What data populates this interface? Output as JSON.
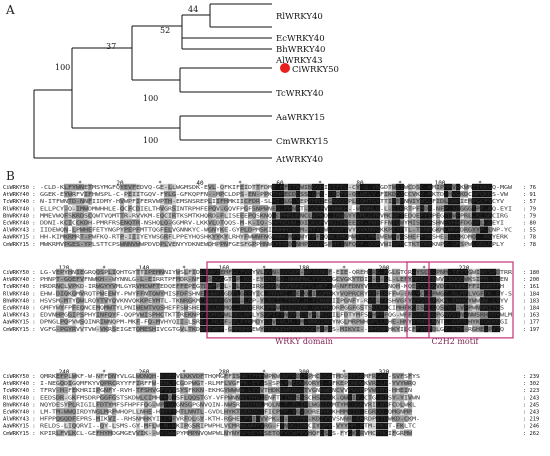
{
  "panels": {
    "a_label": "A",
    "b_label": "B"
  },
  "tree": {
    "taxa": [
      "RlWRKY40",
      "EcWRKY40",
      "BhWRKY40",
      "AlWRKY43",
      "CiWRKY50",
      "TcWRKY40",
      "AaWRKY15",
      "CmWRKY15",
      "AtWRKY40"
    ],
    "highlight": "CiWRKY50",
    "highlight_color": "#e8201c",
    "bootstrap": [
      "44",
      "52",
      "37",
      "100",
      "100",
      "100"
    ]
  },
  "alignment": {
    "blocks": [
      {
        "ruler": [
          {
            "t": "*",
            "c": 10
          },
          {
            "t": "20",
            "c": 20
          },
          {
            "t": "*",
            "c": 30
          },
          {
            "t": "40",
            "c": 40
          },
          {
            "t": "*",
            "c": 50
          },
          {
            "t": "60",
            "c": 60
          },
          {
            "t": "*",
            "c": 70
          },
          {
            "t": "80",
            "c": 80
          },
          {
            "t": "*",
            "c": 90
          },
          {
            "t": "100",
            "c": 100
          },
          {
            "t": "*",
            "c": 110
          }
        ],
        "rows": [
          {
            "name": "CiWRKY50",
            "end": "76"
          },
          {
            "name": "AtWRKY40",
            "end": "91"
          },
          {
            "name": "TcWRKY40",
            "end": "57"
          },
          {
            "name": "RlWRKY40",
            "end": "79"
          },
          {
            "name": "BhWRKY40",
            "end": "79"
          },
          {
            "name": "EcWRKY40",
            "end": "80"
          },
          {
            "name": "AlWRKY43",
            "end": "55"
          },
          {
            "name": "AaWRKY15",
            "end": "78"
          },
          {
            "name": "CmWRKY15",
            "end": "78"
          }
        ]
      },
      {
        "ruler": [
          {
            "t": "120",
            "c": 6
          },
          {
            "t": "*",
            "c": 16
          },
          {
            "t": "140",
            "c": 26
          },
          {
            "t": "*",
            "c": 36
          },
          {
            "t": "160",
            "c": 46
          },
          {
            "t": "*",
            "c": 56
          },
          {
            "t": "180",
            "c": 66
          },
          {
            "t": "*",
            "c": 76
          },
          {
            "t": "200",
            "c": 86
          },
          {
            "t": "*",
            "c": 96
          },
          {
            "t": "220",
            "c": 106
          }
        ],
        "rows": [
          {
            "name": "CiWRKY50",
            "end": "180"
          },
          {
            "name": "AtWRKY40",
            "end": "200"
          },
          {
            "name": "TcWRKY40",
            "end": "161"
          },
          {
            "name": "RlWRKY40",
            "end": "184"
          },
          {
            "name": "BhWRKY40",
            "end": "183"
          },
          {
            "name": "EcWRKY40",
            "end": "184"
          },
          {
            "name": "AlWRKY43",
            "end": "163"
          },
          {
            "name": "AaWRKY15",
            "end": "177"
          },
          {
            "name": "CmWRKY15",
            "end": "197"
          }
        ],
        "motifs": [
          {
            "label": "WRKY domain"
          },
          {
            "label": "C2H2 motif"
          }
        ]
      },
      {
        "ruler": [
          {
            "t": "240",
            "c": 6
          },
          {
            "t": "*",
            "c": 16
          },
          {
            "t": "260",
            "c": 26
          },
          {
            "t": "*",
            "c": 36
          },
          {
            "t": "280",
            "c": 46
          },
          {
            "t": "*",
            "c": 56
          },
          {
            "t": "300",
            "c": 66
          },
          {
            "t": "*",
            "c": 76
          },
          {
            "t": "320",
            "c": 86
          }
        ],
        "rows": [
          {
            "name": "CiWRKY50",
            "end": "239"
          },
          {
            "name": "AtWRKY40",
            "end": "302"
          },
          {
            "name": "TcWRKY40",
            "end": "223"
          },
          {
            "name": "RlWRKY40",
            "end": "243"
          },
          {
            "name": "BhWRKY40",
            "end": "245"
          },
          {
            "name": "EcWRKY40",
            "end": "243"
          },
          {
            "name": "AlWRKY43",
            "end": "219"
          },
          {
            "name": "AaWRKY15",
            "end": "246"
          },
          {
            "name": "CmWRKY15",
            "end": "262"
          }
        ]
      }
    ]
  }
}
